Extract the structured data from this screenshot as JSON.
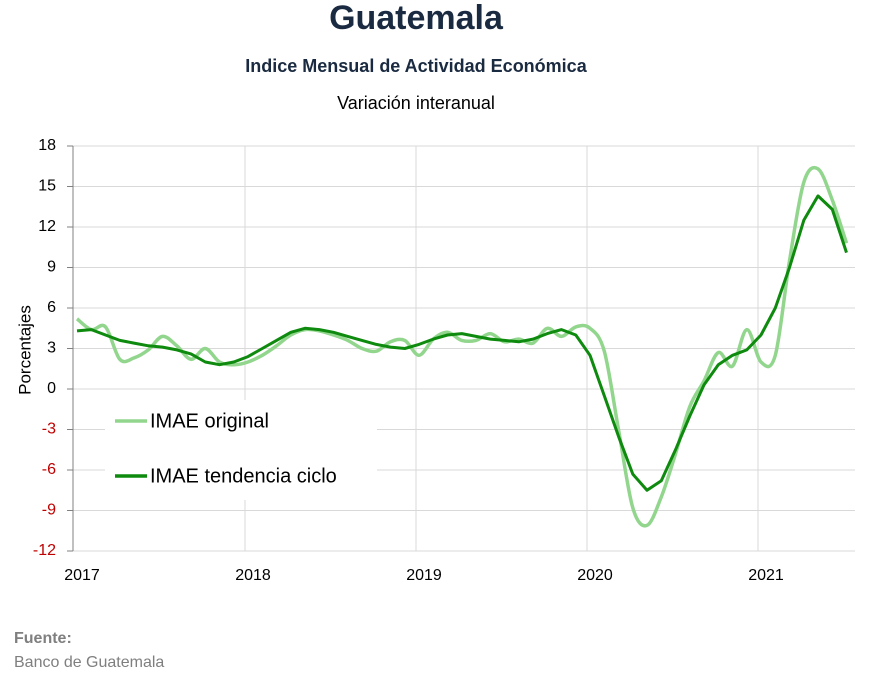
{
  "chart_data": {
    "type": "line",
    "title": "Guatemala",
    "subtitle": "Indice Mensual de  Actividad Económica",
    "subtitle2": "Variación interanual",
    "ylabel": "Porcentajes",
    "source_label": "Fuente:",
    "source": "Banco de Guatemala",
    "categories": [
      "2017",
      null,
      null,
      null,
      null,
      null,
      null,
      null,
      null,
      null,
      null,
      null,
      "2018",
      null,
      null,
      null,
      null,
      null,
      null,
      null,
      null,
      null,
      null,
      null,
      "2019",
      null,
      null,
      null,
      null,
      null,
      null,
      null,
      null,
      null,
      null,
      null,
      "2020",
      null,
      null,
      null,
      null,
      null,
      null,
      null,
      null,
      null,
      null,
      null,
      "2021",
      null,
      null,
      null,
      null,
      null,
      null
    ],
    "series": [
      {
        "name": "IMAE original",
        "color": "#92d68e",
        "smooth": true,
        "values": [
          5.2,
          4.4,
          4.6,
          2.2,
          2.3,
          2.9,
          3.9,
          3.2,
          2.2,
          3.0,
          2.0,
          1.8,
          2.0,
          2.5,
          3.2,
          4.0,
          4.4,
          4.3,
          4.0,
          3.6,
          3.0,
          2.8,
          3.5,
          3.6,
          2.5,
          3.7,
          4.2,
          3.6,
          3.6,
          4.1,
          3.5,
          3.7,
          3.4,
          4.5,
          3.9,
          4.6,
          4.5,
          2.8,
          -3.0,
          -8.8,
          -10.1,
          -8.0,
          -4.8,
          -1.3,
          0.6,
          2.7,
          1.7,
          4.4,
          2.0,
          2.5,
          9.5,
          15.3,
          16.3,
          14.0,
          10.8
        ]
      },
      {
        "name": "IMAE tendencia ciclo",
        "color": "#0e8a0e",
        "smooth": false,
        "values": [
          4.3,
          4.4,
          4.0,
          3.6,
          3.4,
          3.2,
          3.1,
          2.9,
          2.6,
          2.0,
          1.8,
          2.0,
          2.4,
          3.0,
          3.6,
          4.2,
          4.5,
          4.4,
          4.2,
          3.9,
          3.6,
          3.3,
          3.1,
          3.0,
          3.3,
          3.7,
          4.0,
          4.1,
          3.9,
          3.7,
          3.6,
          3.5,
          3.7,
          4.1,
          4.4,
          4.0,
          2.5,
          -0.5,
          -3.5,
          -6.3,
          -7.5,
          -6.8,
          -4.5,
          -2.0,
          0.3,
          1.8,
          2.5,
          2.9,
          4.0,
          6.0,
          9.0,
          12.5,
          14.3,
          13.3,
          10.1
        ]
      }
    ],
    "ylim": [
      -12,
      18
    ],
    "yticks": [
      -12,
      -9,
      -6,
      -3,
      0,
      3,
      6,
      9,
      12,
      15,
      18
    ],
    "negative_tick_color": "#c00000",
    "grid": true,
    "legend": "left"
  }
}
